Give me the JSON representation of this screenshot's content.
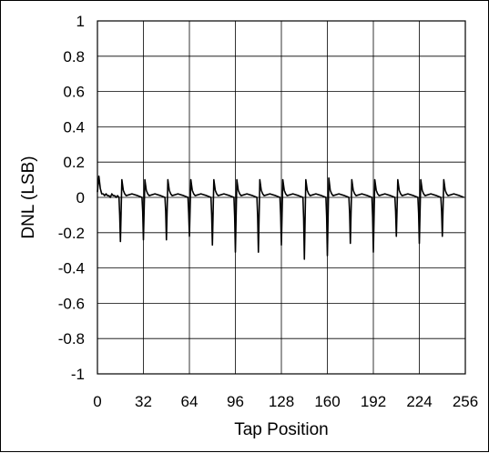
{
  "chart_data": {
    "type": "line",
    "title": "",
    "xlabel": "Tap Position",
    "ylabel": "DNL (LSB)",
    "xlim": [
      0,
      256
    ],
    "ylim": [
      -1,
      1
    ],
    "xticks": [
      0,
      32,
      64,
      96,
      128,
      160,
      192,
      224,
      256
    ],
    "yticks": [
      1,
      0.8,
      0.6,
      0.4,
      0.2,
      0,
      -0.2,
      -0.4,
      -0.6,
      -0.8,
      -1
    ],
    "ytick_labels": [
      "1",
      "0.8",
      "0.6",
      "0.4",
      "0.2",
      "0",
      "-0.2",
      "-0.4",
      "-0.6",
      "-0.8",
      "-1"
    ],
    "grid": true,
    "line_color": "#000000",
    "series": [
      {
        "x": [
          0,
          1,
          2,
          3,
          4,
          5,
          6,
          7,
          8,
          9,
          10,
          11,
          12,
          13,
          14,
          15,
          15.5,
          16,
          17,
          18,
          19,
          20,
          24,
          28,
          31,
          31.5,
          32,
          33,
          34,
          35,
          36,
          40,
          44,
          47,
          47.5,
          48,
          49,
          50,
          51,
          52,
          56,
          60,
          63,
          63.5,
          64,
          65,
          66,
          67,
          68,
          72,
          76,
          79,
          79.5,
          80,
          81,
          82,
          83,
          84,
          88,
          92,
          95,
          95.5,
          96,
          97,
          98,
          99,
          100,
          104,
          108,
          111,
          111.5,
          112,
          113,
          114,
          115,
          116,
          120,
          124,
          127,
          127.5,
          128,
          129,
          130,
          131,
          132,
          136,
          140,
          143,
          143.5,
          144,
          145,
          146,
          147,
          148,
          152,
          156,
          159,
          159.5,
          160,
          161,
          162,
          163,
          164,
          168,
          172,
          175,
          175.5,
          176,
          177,
          178,
          179,
          180,
          184,
          188,
          191,
          191.5,
          192,
          193,
          194,
          195,
          196,
          200,
          204,
          207,
          207.5,
          208,
          209,
          210,
          211,
          212,
          216,
          220,
          223,
          223.5,
          224,
          225,
          226,
          227,
          228,
          232,
          236,
          239,
          239.5,
          240,
          241,
          242,
          243,
          244,
          248,
          252,
          255
        ],
        "y": [
          0.03,
          0.12,
          0.05,
          0.02,
          0.02,
          0.01,
          0.02,
          0.01,
          0.01,
          0.0,
          0.02,
          0.01,
          0.01,
          0.0,
          0.01,
          0.0,
          -0.1,
          -0.25,
          0.1,
          0.04,
          0.02,
          0.01,
          0.02,
          0.01,
          0.0,
          -0.08,
          -0.24,
          0.1,
          0.04,
          0.02,
          0.01,
          0.02,
          0.01,
          0.0,
          -0.08,
          -0.24,
          0.1,
          0.04,
          0.02,
          0.01,
          0.02,
          0.01,
          0.0,
          -0.09,
          -0.22,
          0.1,
          0.04,
          0.02,
          0.01,
          0.02,
          0.01,
          0.0,
          -0.1,
          -0.27,
          0.1,
          0.04,
          0.02,
          0.01,
          0.02,
          0.01,
          0.0,
          -0.11,
          -0.31,
          0.1,
          0.04,
          0.02,
          0.01,
          0.02,
          0.01,
          0.0,
          -0.11,
          -0.31,
          0.1,
          0.04,
          0.02,
          0.01,
          0.02,
          0.01,
          0.0,
          -0.1,
          -0.27,
          0.1,
          0.04,
          0.02,
          0.01,
          0.02,
          0.01,
          0.0,
          -0.12,
          -0.35,
          0.1,
          0.04,
          0.02,
          0.01,
          0.02,
          0.01,
          0.0,
          -0.11,
          -0.33,
          0.11,
          0.04,
          0.02,
          0.01,
          0.02,
          0.01,
          0.0,
          -0.09,
          -0.26,
          0.1,
          0.04,
          0.02,
          0.01,
          0.02,
          0.01,
          0.0,
          -0.11,
          -0.31,
          0.1,
          0.04,
          0.02,
          0.01,
          0.02,
          0.01,
          0.0,
          -0.08,
          -0.22,
          0.1,
          0.04,
          0.02,
          0.01,
          0.02,
          0.01,
          0.0,
          -0.09,
          -0.26,
          0.1,
          0.04,
          0.02,
          0.01,
          0.02,
          0.01,
          0.0,
          -0.08,
          -0.22,
          0.1,
          0.04,
          0.02,
          0.01,
          0.02,
          0.01,
          0.0
        ]
      }
    ]
  }
}
